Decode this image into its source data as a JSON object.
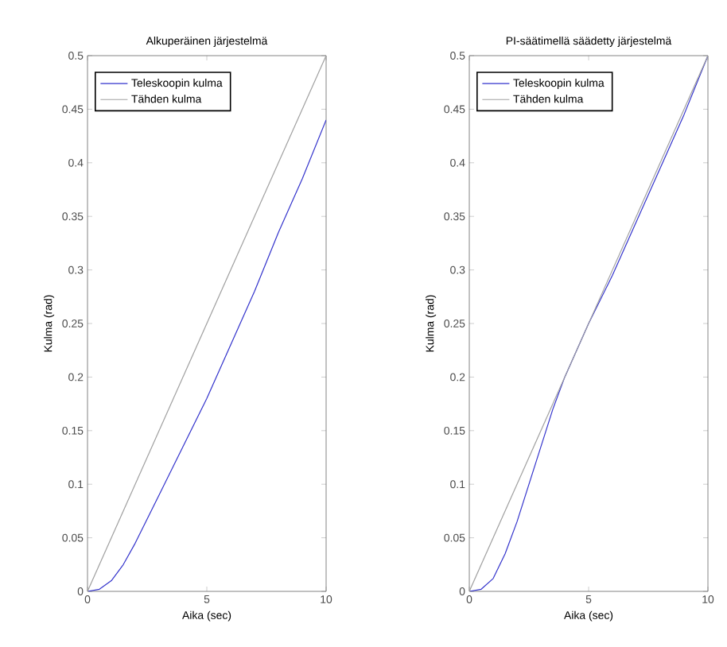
{
  "chart_data": [
    {
      "type": "line",
      "title": "Alkuperäinen järjestelmä",
      "xlabel": "Aika (sec)",
      "ylabel": "Kulma (rad)",
      "xlim": [
        0,
        10
      ],
      "ylim": [
        0,
        0.5
      ],
      "xticks": [
        0,
        5,
        10
      ],
      "yticks": [
        0,
        0.05,
        0.1,
        0.15,
        0.2,
        0.25,
        0.3,
        0.35,
        0.4,
        0.45,
        0.5
      ],
      "legend": "top left",
      "grid": false,
      "marker": "none",
      "line_style": "solid",
      "series": [
        {
          "name": "Teleskoopin kulma",
          "color": "#3333cc",
          "x": [
            0,
            0.5,
            1,
            1.5,
            2,
            3,
            4,
            5,
            6,
            7,
            8,
            9,
            10
          ],
          "values": [
            0,
            0.002,
            0.01,
            0.025,
            0.045,
            0.09,
            0.135,
            0.18,
            0.23,
            0.28,
            0.335,
            0.385,
            0.44
          ]
        },
        {
          "name": "Tähden kulma",
          "color": "#a0a0a0",
          "x": [
            0,
            10
          ],
          "values": [
            0,
            0.5
          ]
        }
      ]
    },
    {
      "type": "line",
      "title": "PI-säätimellä säädetty järjestelmä",
      "xlabel": "Aika (sec)",
      "ylabel": "Kulma (rad)",
      "xlim": [
        0,
        10
      ],
      "ylim": [
        0,
        0.5
      ],
      "xticks": [
        0,
        5,
        10
      ],
      "yticks": [
        0,
        0.05,
        0.1,
        0.15,
        0.2,
        0.25,
        0.3,
        0.35,
        0.4,
        0.45,
        0.5
      ],
      "legend": "top left",
      "grid": false,
      "marker": "none",
      "line_style": "solid",
      "series": [
        {
          "name": "Teleskoopin kulma",
          "color": "#3333cc",
          "x": [
            0,
            0.5,
            1,
            1.5,
            2,
            2.5,
            3,
            3.5,
            4,
            5,
            6,
            7,
            8,
            9,
            10
          ],
          "values": [
            0,
            0.002,
            0.012,
            0.035,
            0.065,
            0.1,
            0.135,
            0.17,
            0.2,
            0.25,
            0.295,
            0.345,
            0.395,
            0.445,
            0.5
          ]
        },
        {
          "name": "Tähden kulma",
          "color": "#a0a0a0",
          "x": [
            0,
            10
          ],
          "values": [
            0,
            0.5
          ]
        }
      ]
    }
  ]
}
